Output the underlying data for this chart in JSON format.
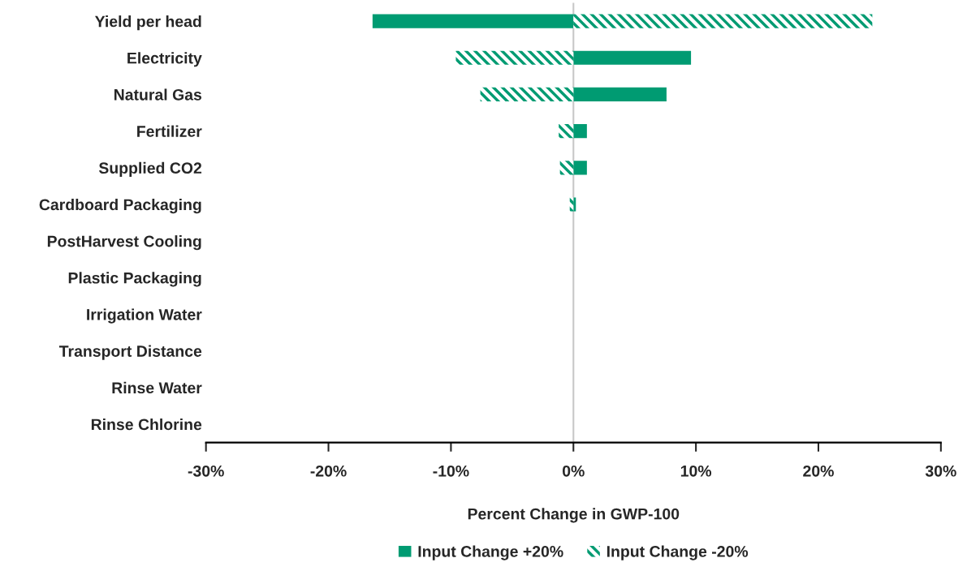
{
  "chart_data": {
    "type": "bar",
    "orientation": "horizontal",
    "xlabel": "Percent Change in GWP-100",
    "categories": [
      "Yield per head",
      "Electricity",
      "Natural Gas",
      "Fertilizer",
      "Supplied CO2",
      "Cardboard Packaging",
      "PostHarvest Cooling",
      "Plastic Packaging",
      "Irrigation Water",
      "Transport Distance",
      "Rinse Water",
      "Rinse Chlorine"
    ],
    "series": [
      {
        "name": "Input Change +20%",
        "color": "#009b72",
        "values": [
          -16.4,
          9.6,
          7.6,
          1.1,
          1.1,
          0.2,
          0,
          0,
          0,
          0,
          0,
          0
        ]
      },
      {
        "name": "Input Change -20%",
        "color": "#009b72",
        "values": [
          24.4,
          -9.6,
          -7.6,
          -1.2,
          -1.1,
          -0.3,
          0,
          0,
          0,
          0,
          0,
          0
        ]
      }
    ],
    "xlim": [
      -30,
      30
    ],
    "xticks": [
      {
        "value": -30,
        "label": "-30%"
      },
      {
        "value": -20,
        "label": "-20%"
      },
      {
        "value": -10,
        "label": "-10%"
      },
      {
        "value": 0,
        "label": "0%"
      },
      {
        "value": 10,
        "label": "10%"
      },
      {
        "value": 20,
        "label": "20%"
      },
      {
        "value": 30,
        "label": "30%"
      }
    ],
    "ref_lines": [
      {
        "axis": "x",
        "value": 0,
        "color": "#c8c8c8"
      }
    ],
    "grid": false,
    "legend": "bottom",
    "stacked": true
  }
}
